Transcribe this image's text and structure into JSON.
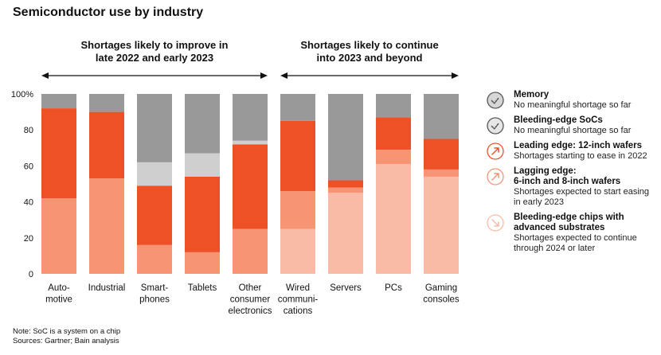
{
  "title": "Semiconductor use by industry",
  "chart_data": {
    "type": "bar",
    "stacked": true,
    "categories": [
      [
        "Auto-",
        "motive"
      ],
      [
        "Industrial"
      ],
      [
        "Smart-",
        "phones"
      ],
      [
        "Tablets"
      ],
      [
        "Other",
        "consumer",
        "electronics"
      ],
      [
        "Wired",
        "communi-",
        "cations"
      ],
      [
        "Servers"
      ],
      [
        "PCs"
      ],
      [
        "Gaming",
        "consoles"
      ]
    ],
    "series": [
      {
        "name": "Bleeding-edge chips with advanced substrates",
        "color": "#f9bba6",
        "values": [
          0,
          0,
          0,
          0,
          0,
          25,
          45,
          61,
          54
        ]
      },
      {
        "name": "Lagging edge: 6-inch and 8-inch wafers",
        "color": "#f69474",
        "values": [
          42,
          53,
          16,
          12,
          25,
          21,
          3,
          8,
          4
        ]
      },
      {
        "name": "Leading edge: 12-inch wafers",
        "color": "#ef5127",
        "values": [
          50,
          37,
          33,
          42,
          47,
          39,
          4,
          18,
          17
        ]
      },
      {
        "name": "Bleeding-edge SoCs",
        "color": "#cfcfcf",
        "values": [
          0,
          0,
          13,
          13,
          2,
          0,
          0,
          0,
          0
        ]
      },
      {
        "name": "Memory",
        "color": "#999999",
        "values": [
          8,
          10,
          38,
          33,
          26,
          15,
          48,
          13,
          25
        ]
      }
    ],
    "ylim": [
      0,
      100
    ],
    "yticks": [
      "0",
      "20",
      "40",
      "60",
      "80",
      "100%"
    ],
    "ytick_values": [
      0,
      20,
      40,
      60,
      80,
      100
    ],
    "regions": [
      {
        "lines": [
          "Shortages likely to improve in",
          "late 2022 and early 2023"
        ],
        "from": 0,
        "to": 4
      },
      {
        "lines": [
          "Shortages likely to continue",
          "into 2023 and beyond"
        ],
        "from": 5,
        "to": 8
      }
    ],
    "legend": [
      {
        "title": [
          "Memory"
        ],
        "desc": [
          "No meaningful shortage so far"
        ],
        "icon": "check-icon",
        "color": "#999999",
        "filled": true
      },
      {
        "title": [
          "Bleeding-edge SoCs"
        ],
        "desc": [
          "No meaningful shortage so far"
        ],
        "icon": "check-icon",
        "color": "#cfcfcf",
        "filled": true
      },
      {
        "title": [
          "Leading edge: 12-inch wafers"
        ],
        "desc": [
          "Shortages starting to ease in 2022"
        ],
        "icon": "arrow-up-right-icon",
        "color": "#ef5127",
        "filled": false
      },
      {
        "title": [
          "Lagging edge:",
          "6-inch and 8-inch wafers"
        ],
        "desc": [
          "Shortages expected to start easing",
          "in early 2023"
        ],
        "icon": "arrow-up-right-icon",
        "color": "#f69474",
        "filled": false
      },
      {
        "title": [
          "Bleeding-edge chips with",
          "advanced substrates"
        ],
        "desc": [
          "Shortages expected to continue",
          "through 2024 or later"
        ],
        "icon": "arrow-down-right-icon",
        "color": "#f9bba6",
        "filled": false
      }
    ]
  },
  "footnotes": [
    "Note: SoC is a system on a chip",
    "Sources: Gartner; Bain analysis"
  ]
}
